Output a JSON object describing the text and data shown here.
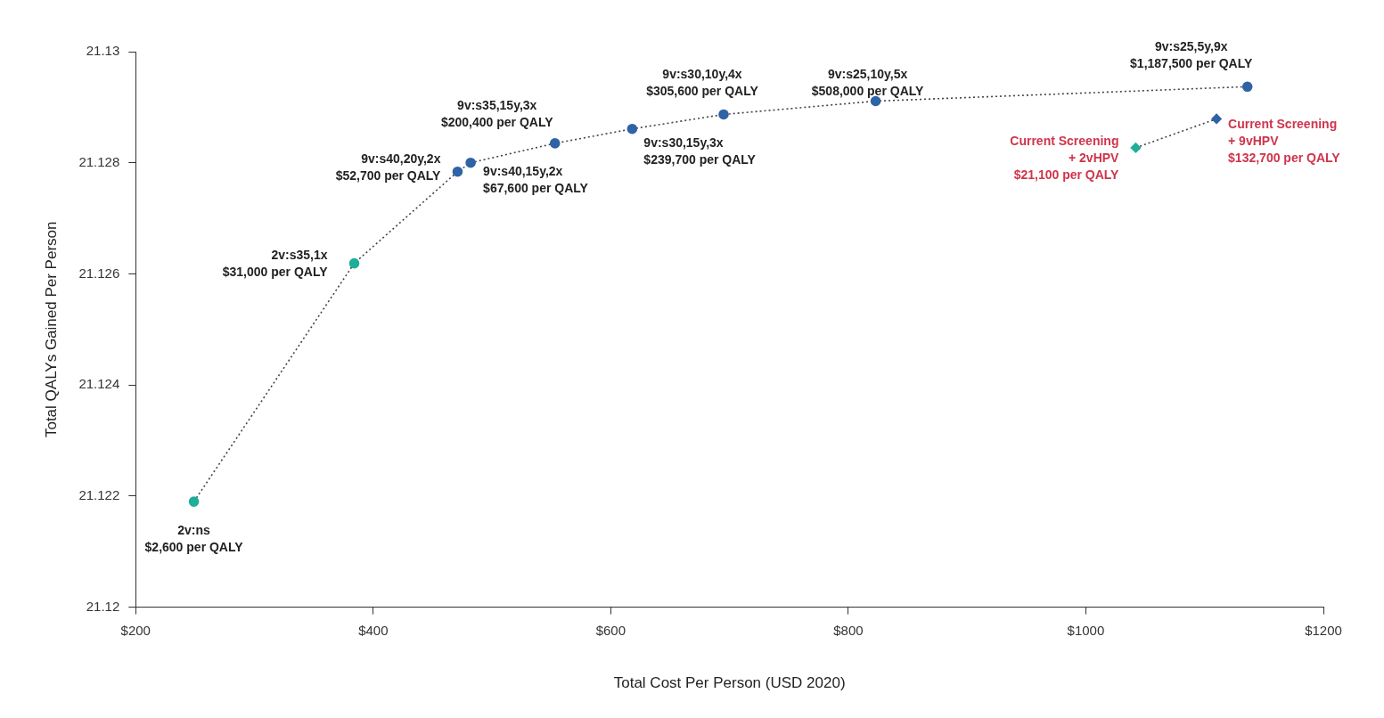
{
  "chart_data": {
    "type": "scatter",
    "xlabel": "Total Cost Per Person (USD 2020)",
    "ylabel": "Total QALYs Gained Per Person",
    "xlim": [
      200,
      1200
    ],
    "xticks": [
      {
        "value": 200,
        "label": "$200"
      },
      {
        "value": 400,
        "label": "$400"
      },
      {
        "value": 600,
        "label": "$600"
      },
      {
        "value": 800,
        "label": "$800"
      },
      {
        "value": 1000,
        "label": "$1000"
      },
      {
        "value": 1200,
        "label": "$1200"
      }
    ],
    "ylim": [
      21.12,
      21.13
    ],
    "yticks": [
      21.12,
      21.122,
      21.124,
      21.126,
      21.128,
      21.13
    ],
    "grid": false,
    "line_style": "dotted",
    "series": [
      {
        "type": "line",
        "color": "#444444",
        "marker": "circle",
        "colors": [
          "#1fae98",
          "#1fae98",
          "#2e63a6",
          "#2e63a6",
          "#2e63a6",
          "#2e63a6",
          "#2e63a6",
          "#2e63a6",
          "#2e63a6"
        ],
        "x": [
          249,
          384,
          471,
          482,
          553,
          618,
          695,
          823,
          1136
        ],
        "values": [
          21.1219,
          21.12619,
          21.12784,
          21.128,
          21.12835,
          21.12861,
          21.12887,
          21.12911,
          21.12937
        ]
      },
      {
        "type": "line",
        "color": "#444444",
        "marker": "diamond",
        "colors": [
          "#1fae98",
          "#2e63a6"
        ],
        "x": [
          1042,
          1110
        ],
        "values": [
          21.12827,
          21.12879
        ]
      }
    ],
    "annotations": [
      {
        "text": "2v:ns\n$2,600 per QALY",
        "x": 249,
        "y": 21.1219
      },
      {
        "text": "2v:s35,1x\n$31,000 per QALY",
        "x": 384,
        "y": 21.12619
      },
      {
        "text": "9v:s40,20y,2x\n$52,700 per QALY",
        "x": 471,
        "y": 21.12784
      },
      {
        "text": "9v:s40,15y,2x\n$67,600 per QALY",
        "x": 482,
        "y": 21.128
      },
      {
        "text": "9v:s35,15y,3x\n$200,400 per QALY",
        "x": 553,
        "y": 21.12835
      },
      {
        "text": "9v:s30,15y,3x\n$239,700 per QALY",
        "x": 618,
        "y": 21.12861
      },
      {
        "text": "9v:s30,10y,4x\n$305,600 per QALY",
        "x": 695,
        "y": 21.12887
      },
      {
        "text": "9v:s25,10y,5x\n$508,000 per QALY",
        "x": 823,
        "y": 21.12911
      },
      {
        "text": "9v:s25,5y,9x\n$1,187,500 per QALY",
        "x": 1136,
        "y": 21.12937
      },
      {
        "text": "Current Screening\n+ 2vHPV\n$21,100 per QALY",
        "x": 1042,
        "y": 21.12827
      },
      {
        "text": "Current Screening\n+ 9vHPV\n$132,700 per QALY",
        "x": 1110,
        "y": 21.12879
      }
    ]
  }
}
